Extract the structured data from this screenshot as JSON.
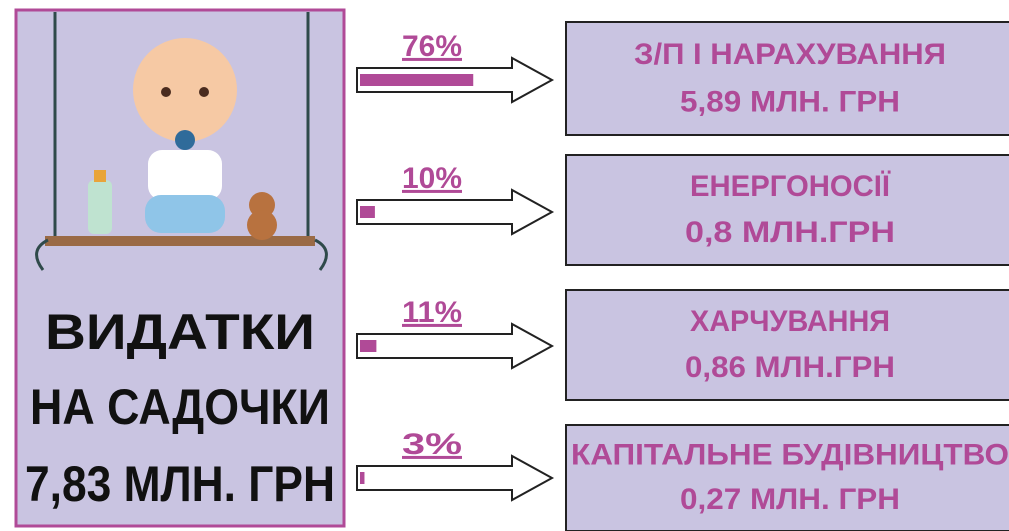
{
  "panel": {
    "lines": [
      "ВИДАТКИ",
      "НА САДОЧКИ",
      "7,83 МЛН. ГРН"
    ]
  },
  "items": [
    {
      "share": 76,
      "share_label": "76%",
      "name": "З/П І НАРАХУВАННЯ",
      "amount": "5,89 МЛН. ГРН"
    },
    {
      "share": 10,
      "share_label": "10%",
      "name": "ЕНЕРГОНОСІЇ",
      "amount": "0,8 МЛН.ГРН"
    },
    {
      "share": 11,
      "share_label": "11%",
      "name": "ХАРЧУВАННЯ",
      "amount": "0,86 МЛН.ГРН"
    },
    {
      "share": 3,
      "share_label": "3%",
      "name": "КАПІТАЛЬНЕ БУДІВНИЦТВО",
      "amount": "0,27 МЛН. ГРН"
    }
  ]
}
